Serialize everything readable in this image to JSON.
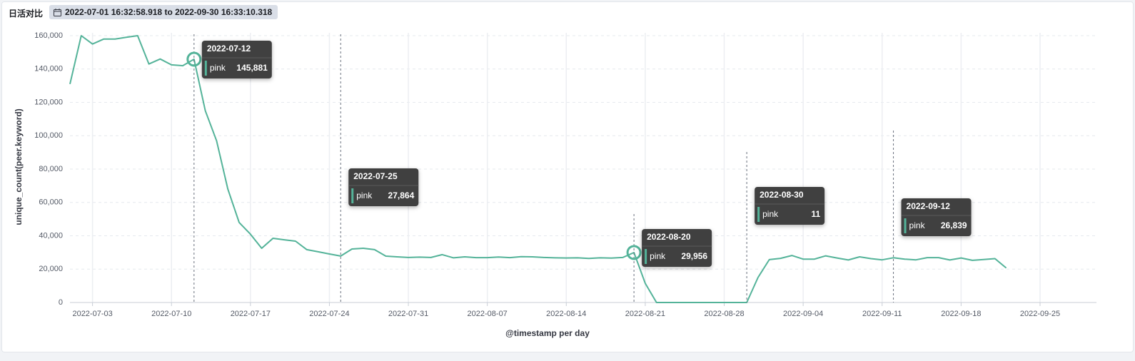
{
  "header": {
    "title": "日活对比",
    "time_range": "2022-07-01 16:32:58.918 to 2022-09-30 16:33:10.318"
  },
  "chart_data": {
    "type": "line",
    "xlabel": "@timestamp per day",
    "ylabel": "unique_count(peer.keyword)",
    "x": [
      "2022-07-01",
      "2022-07-02",
      "2022-07-03",
      "2022-07-04",
      "2022-07-05",
      "2022-07-06",
      "2022-07-07",
      "2022-07-08",
      "2022-07-09",
      "2022-07-10",
      "2022-07-11",
      "2022-07-12",
      "2022-07-13",
      "2022-07-14",
      "2022-07-15",
      "2022-07-16",
      "2022-07-17",
      "2022-07-18",
      "2022-07-19",
      "2022-07-20",
      "2022-07-21",
      "2022-07-22",
      "2022-07-23",
      "2022-07-24",
      "2022-07-25",
      "2022-07-26",
      "2022-07-27",
      "2022-07-28",
      "2022-07-29",
      "2022-07-30",
      "2022-07-31",
      "2022-08-01",
      "2022-08-02",
      "2022-08-03",
      "2022-08-04",
      "2022-08-05",
      "2022-08-06",
      "2022-08-07",
      "2022-08-08",
      "2022-08-09",
      "2022-08-10",
      "2022-08-11",
      "2022-08-12",
      "2022-08-13",
      "2022-08-14",
      "2022-08-15",
      "2022-08-16",
      "2022-08-17",
      "2022-08-18",
      "2022-08-19",
      "2022-08-20",
      "2022-08-21",
      "2022-08-22",
      "2022-08-23",
      "2022-08-24",
      "2022-08-25",
      "2022-08-26",
      "2022-08-27",
      "2022-08-28",
      "2022-08-29",
      "2022-08-30",
      "2022-08-31",
      "2022-09-01",
      "2022-09-02",
      "2022-09-03",
      "2022-09-04",
      "2022-09-05",
      "2022-09-06",
      "2022-09-07",
      "2022-09-08",
      "2022-09-09",
      "2022-09-10",
      "2022-09-11",
      "2022-09-12",
      "2022-09-13",
      "2022-09-14",
      "2022-09-15",
      "2022-09-16",
      "2022-09-17",
      "2022-09-18",
      "2022-09-19",
      "2022-09-20",
      "2022-09-21",
      "2022-09-22"
    ],
    "series": [
      {
        "name": "pink",
        "color": "#54b399",
        "values": [
          131000,
          160000,
          155000,
          158000,
          158000,
          159000,
          160000,
          143000,
          146000,
          142500,
          142000,
          145881,
          115000,
          97000,
          68000,
          48000,
          41000,
          32500,
          38500,
          37600,
          36800,
          31700,
          30400,
          29100,
          27864,
          32100,
          32500,
          31700,
          27800,
          27400,
          27000,
          27200,
          27000,
          28700,
          26800,
          27400,
          26900,
          26900,
          27300,
          26900,
          27500,
          27400,
          27000,
          26800,
          26700,
          26800,
          26400,
          26800,
          26600,
          27000,
          29956,
          11500,
          0,
          0,
          0,
          0,
          0,
          0,
          0,
          0,
          11,
          15000,
          25700,
          26500,
          28200,
          26000,
          26000,
          28000,
          26700,
          25500,
          27400,
          26300,
          25600,
          26839,
          26000,
          25600,
          26900,
          26900,
          25500,
          26700,
          25300,
          25800,
          26300,
          20700
        ],
        "value_labels": [
          null,
          null,
          null,
          null,
          null,
          null,
          null,
          null,
          null,
          null,
          null,
          "145,881",
          null,
          null,
          null,
          null,
          null,
          null,
          null,
          null,
          null,
          null,
          null,
          null,
          "27,864",
          null,
          null,
          null,
          null,
          null,
          null,
          null,
          null,
          null,
          null,
          null,
          null,
          null,
          null,
          null,
          null,
          null,
          null,
          null,
          null,
          null,
          null,
          null,
          null,
          null,
          "29,956",
          null,
          null,
          null,
          null,
          null,
          null,
          null,
          null,
          null,
          "11",
          null,
          null,
          null,
          null,
          null,
          null,
          null,
          null,
          null,
          null,
          null,
          null,
          "26,839",
          null,
          null,
          null,
          null,
          null,
          null,
          null,
          null,
          null,
          null
        ]
      }
    ],
    "xlim": [
      "2022-07-01",
      "2022-09-30"
    ],
    "xticks": [
      "2022-07-03",
      "2022-07-10",
      "2022-07-17",
      "2022-07-24",
      "2022-07-31",
      "2022-08-07",
      "2022-08-14",
      "2022-08-21",
      "2022-08-28",
      "2022-09-04",
      "2022-09-11",
      "2022-09-18",
      "2022-09-25"
    ],
    "ylim": [
      0,
      160000
    ],
    "yticks": [
      0,
      {
        "value": 20000,
        "label": "20,000"
      },
      {
        "value": 40000,
        "label": "40,000"
      },
      {
        "value": 60000,
        "label": "60,000"
      },
      {
        "value": 80000,
        "label": "80,000"
      },
      {
        "value": 100000,
        "label": "100,000"
      },
      {
        "value": 120000,
        "label": "120,000"
      },
      {
        "value": 140000,
        "label": "140,000"
      },
      {
        "value": 160000,
        "label": "160,000"
      }
    ],
    "grid": true
  }
}
